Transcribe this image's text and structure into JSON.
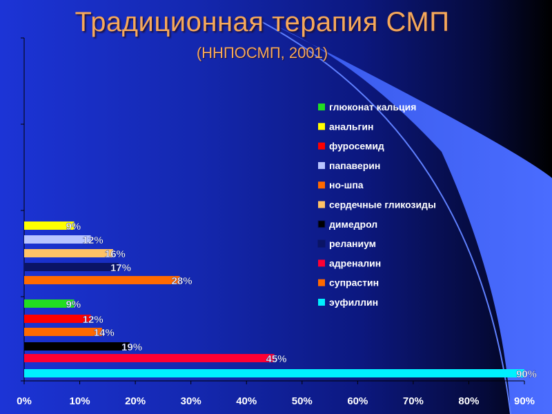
{
  "slide": {
    "title": "Традиционная терапия СМП",
    "subtitle": "(ННПОСМП, 2001)"
  },
  "chart_data": {
    "type": "bar",
    "orientation": "horizontal",
    "xlim": [
      0,
      90
    ],
    "x_ticks": [
      "0%",
      "10%",
      "20%",
      "30%",
      "40%",
      "50%",
      "60%",
      "70%",
      "80%",
      "90%"
    ],
    "legend_position": "right",
    "legend": [
      {
        "label": "глюконат кальция",
        "color": "#22dd22"
      },
      {
        "label": "анальгин",
        "color": "#ffff00"
      },
      {
        "label": "фуросемид",
        "color": "#ff0000"
      },
      {
        "label": "папаверин",
        "color": "#b8c4ff"
      },
      {
        "label": "но-шпа",
        "color": "#ff6a00"
      },
      {
        "label": "сердечные гликозиды",
        "color": "#ffc266"
      },
      {
        "label": "димедрол",
        "color": "#000000"
      },
      {
        "label": "реланиум",
        "color": "#0a1466"
      },
      {
        "label": "адреналин",
        "color": "#ff0033"
      },
      {
        "label": "супрастин",
        "color": "#ff6a00"
      },
      {
        "label": "эуфиллин",
        "color": "#00f0ff"
      }
    ],
    "bars": [
      {
        "series": "анальгин",
        "value": 9,
        "label": "9%",
        "color": "#ffff00"
      },
      {
        "series": "папаверин",
        "value": 12,
        "label": "12%",
        "color": "#b8c4ff"
      },
      {
        "series": "сердечные гликозиды",
        "value": 16,
        "label": "16%",
        "color": "#ffc266"
      },
      {
        "series": "реланиум",
        "value": 17,
        "label": "17%",
        "color": "#0a1466"
      },
      {
        "series": "но-шпа",
        "value": 28,
        "label": "28%",
        "color": "#ff6a00"
      },
      {
        "series": "глюконат кальция",
        "value": 9,
        "label": "9%",
        "color": "#22dd22"
      },
      {
        "series": "фуросемид",
        "value": 12,
        "label": "12%",
        "color": "#ff0000"
      },
      {
        "series": "супрастин",
        "value": 14,
        "label": "14%",
        "color": "#ff6a00"
      },
      {
        "series": "димедрол",
        "value": 19,
        "label": "19%",
        "color": "#000000"
      },
      {
        "series": "адреналин",
        "value": 45,
        "label": "45%",
        "color": "#ff0033"
      },
      {
        "series": "эуфиллин",
        "value": 90,
        "label": "90%",
        "color": "#00f0ff"
      }
    ]
  }
}
